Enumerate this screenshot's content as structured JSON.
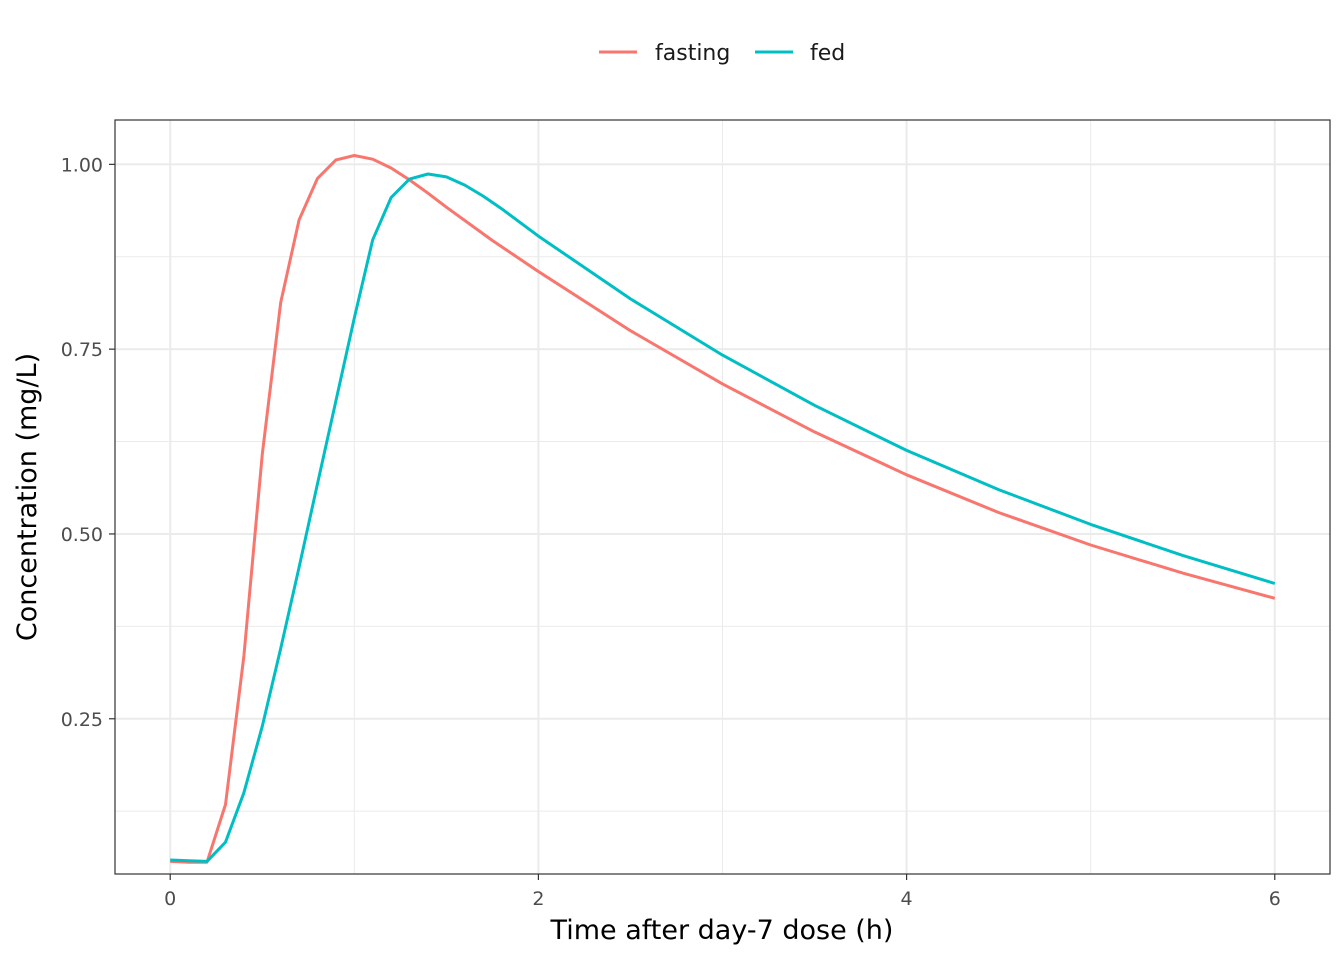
{
  "chart_data": {
    "type": "line",
    "xlabel": "Time after day-7 dose (h)",
    "ylabel": "Concentration (mg/L)",
    "xlim": [
      -0.3,
      6.3
    ],
    "ylim": [
      0.04,
      1.06
    ],
    "x_ticks": [
      0,
      2,
      4,
      6
    ],
    "x_tick_labels": [
      "0",
      "2",
      "4",
      "6"
    ],
    "y_ticks": [
      0.25,
      0.5,
      0.75,
      1.0
    ],
    "y_tick_labels": [
      "0.25",
      "0.50",
      "0.75",
      "1.00"
    ],
    "grid": true,
    "legend_position": "top",
    "series": [
      {
        "name": "fasting",
        "color": "#F8766D",
        "x": [
          0,
          0.1,
          0.2,
          0.3,
          0.4,
          0.5,
          0.6,
          0.7,
          0.8,
          0.9,
          1.0,
          1.1,
          1.2,
          1.3,
          1.4,
          1.5,
          1.75,
          2,
          2.5,
          3,
          3.5,
          4,
          4.5,
          5,
          5.5,
          6
        ],
        "values": [
          0.057,
          0.056,
          0.056,
          0.134,
          0.335,
          0.608,
          0.813,
          0.925,
          0.981,
          1.006,
          1.012,
          1.007,
          0.995,
          0.979,
          0.961,
          0.942,
          0.897,
          0.855,
          0.775,
          0.703,
          0.638,
          0.58,
          0.529,
          0.485,
          0.447,
          0.413
        ]
      },
      {
        "name": "fed",
        "color": "#00BFC4",
        "x": [
          0,
          0.1,
          0.2,
          0.3,
          0.4,
          0.5,
          0.6,
          0.7,
          0.8,
          0.9,
          1.0,
          1.1,
          1.2,
          1.3,
          1.4,
          1.5,
          1.6,
          1.7,
          1.8,
          2,
          2.5,
          3,
          3.5,
          4,
          4.5,
          5,
          5.5,
          6
        ],
        "values": [
          0.059,
          0.058,
          0.057,
          0.083,
          0.15,
          0.24,
          0.345,
          0.455,
          0.568,
          0.68,
          0.792,
          0.898,
          0.955,
          0.98,
          0.987,
          0.983,
          0.972,
          0.957,
          0.94,
          0.903,
          0.818,
          0.742,
          0.674,
          0.613,
          0.56,
          0.513,
          0.471,
          0.433
        ]
      }
    ]
  }
}
